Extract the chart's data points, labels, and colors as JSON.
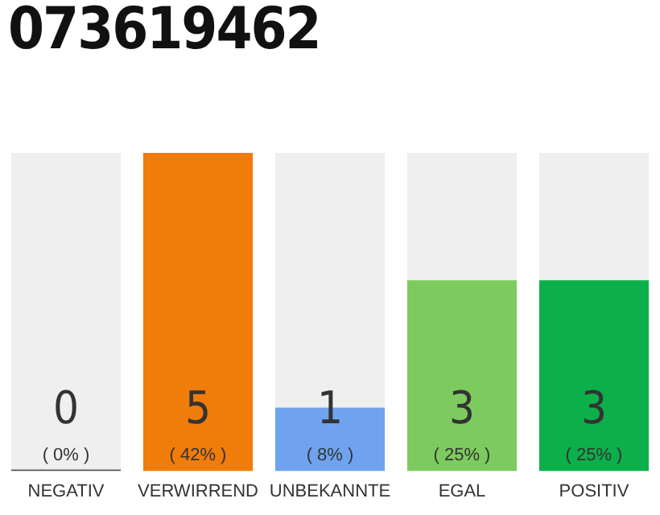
{
  "chart_data": {
    "type": "bar",
    "title": "073619462",
    "categories": [
      "NEGATIV",
      "VERWIRREND",
      "UNBEKANNTE",
      "EGAL",
      "POSITIV"
    ],
    "stacked": true,
    "series": [
      {
        "colors": [
          "#555555",
          "#f07c0a",
          "#6fa3ef",
          "#7dcb5f",
          "#0cb04a"
        ],
        "values": [
          0,
          5,
          1,
          3,
          3
        ],
        "value_labels": [
          "0\n( 0% )",
          "5\n( 42% )",
          "1\n( 8% )",
          "3\n( 25% )",
          "3\n( 25% )"
        ]
      },
      {
        "color": "#efefef",
        "values": [
          5,
          0,
          4,
          2,
          2
        ]
      }
    ],
    "ylim": [
      0,
      5
    ],
    "tick_labels": "x",
    "grid": false,
    "legend": false
  }
}
